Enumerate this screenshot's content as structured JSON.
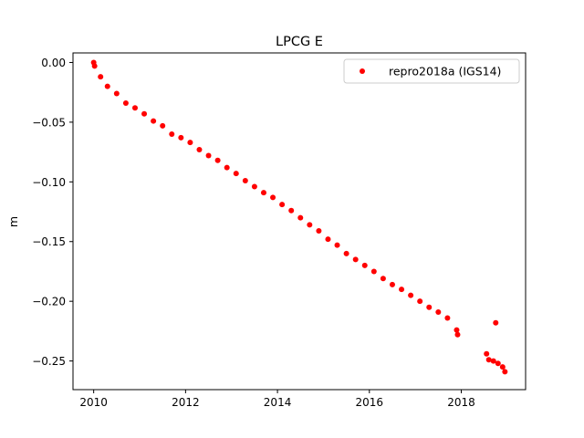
{
  "chart_data": {
    "type": "scatter",
    "title": "LPCG E",
    "xlabel": "",
    "ylabel": "m",
    "xlim": [
      2009.55,
      2019.4
    ],
    "ylim": [
      -0.274,
      0.008
    ],
    "xticks": [
      2010,
      2012,
      2014,
      2016,
      2018
    ],
    "xtick_labels": [
      "2010",
      "2012",
      "2014",
      "2016",
      "2018"
    ],
    "yticks": [
      0.0,
      -0.05,
      -0.1,
      -0.15,
      -0.2,
      -0.25
    ],
    "ytick_labels": [
      "0.00",
      "−0.05",
      "−0.10",
      "−0.15",
      "−0.20",
      "−0.25"
    ],
    "grid": false,
    "legend_position": "upper-right",
    "series": [
      {
        "name": "repro2018a (IGS14)",
        "color": "#ff0000",
        "marker": "circle",
        "x": [
          2010.0,
          2010.02,
          2010.15,
          2010.3,
          2010.5,
          2010.7,
          2010.9,
          2011.1,
          2011.3,
          2011.5,
          2011.7,
          2011.9,
          2012.1,
          2012.3,
          2012.5,
          2012.7,
          2012.9,
          2013.1,
          2013.3,
          2013.5,
          2013.7,
          2013.9,
          2014.1,
          2014.3,
          2014.5,
          2014.7,
          2014.9,
          2015.1,
          2015.3,
          2015.5,
          2015.7,
          2015.9,
          2016.1,
          2016.3,
          2016.5,
          2016.7,
          2016.9,
          2017.1,
          2017.3,
          2017.5,
          2017.7,
          2017.9,
          2017.92,
          2018.55,
          2018.6,
          2018.7,
          2018.75,
          2018.8,
          2018.9,
          2018.95
        ],
        "y": [
          0.0,
          -0.003,
          -0.012,
          -0.02,
          -0.026,
          -0.034,
          -0.038,
          -0.043,
          -0.049,
          -0.053,
          -0.06,
          -0.063,
          -0.067,
          -0.073,
          -0.078,
          -0.082,
          -0.088,
          -0.093,
          -0.099,
          -0.104,
          -0.109,
          -0.113,
          -0.119,
          -0.124,
          -0.13,
          -0.136,
          -0.141,
          -0.148,
          -0.153,
          -0.16,
          -0.165,
          -0.17,
          -0.175,
          -0.181,
          -0.186,
          -0.19,
          -0.195,
          -0.2,
          -0.205,
          -0.209,
          -0.214,
          -0.224,
          -0.228,
          -0.244,
          -0.249,
          -0.25,
          -0.218,
          -0.252,
          -0.255,
          -0.259
        ]
      }
    ]
  }
}
